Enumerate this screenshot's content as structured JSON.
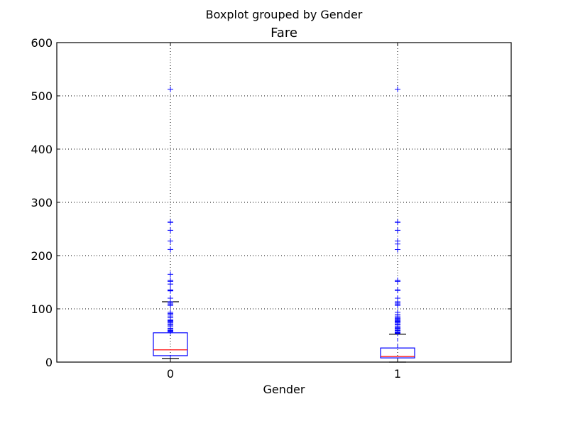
{
  "chart_data": {
    "type": "boxplot",
    "suptitle": "Boxplot grouped by Gender",
    "title": "Fare",
    "xlabel": "Gender",
    "ylabel": "",
    "categories": [
      "0",
      "1"
    ],
    "ylim": [
      0,
      600
    ],
    "yticks": [
      0,
      100,
      200,
      300,
      400,
      500,
      600
    ],
    "grid": true,
    "colors": {
      "box": "#0000ff",
      "median": "#ff0000",
      "whisker": "#000000",
      "flier": "#0000ff",
      "grid": "#000000"
    },
    "boxes": [
      {
        "category": "0",
        "whisker_low": 6.8,
        "q1": 12.1,
        "median": 23.0,
        "q3": 55.0,
        "whisker_high": 113.3,
        "fliers": [
          512.3,
          263,
          262.4,
          247.5,
          227.5,
          211.5,
          164.9,
          153.5,
          151.6,
          146.5,
          135.6,
          134.5,
          133.7,
          120,
          113.3,
          110.9,
          108.9,
          106.4,
          93.5,
          91.1,
          90,
          86.5,
          83.2,
          79.2,
          77.9,
          76.3,
          75.3,
          73.5,
          71,
          69.3,
          66.6,
          63.4,
          61.2,
          59.4,
          57.9,
          56.9
        ]
      },
      {
        "category": "1",
        "whisker_low": 0,
        "q1": 7.9,
        "median": 10.5,
        "q3": 26.5,
        "whisker_high": 52.5,
        "fliers": [
          512.3,
          263,
          262.4,
          247.5,
          227.5,
          221.8,
          211.3,
          153.5,
          151.6,
          135.6,
          134.5,
          120,
          113.3,
          110.9,
          108.9,
          106.4,
          93.5,
          90,
          86.5,
          83.5,
          82.2,
          80,
          79.6,
          78.9,
          77.3,
          76.7,
          75.2,
          73.5,
          71.3,
          69.6,
          66.6,
          65,
          63.4,
          61.4,
          61.2,
          59.4,
          57,
          56.5,
          55.9,
          55.4,
          54
        ]
      }
    ]
  }
}
